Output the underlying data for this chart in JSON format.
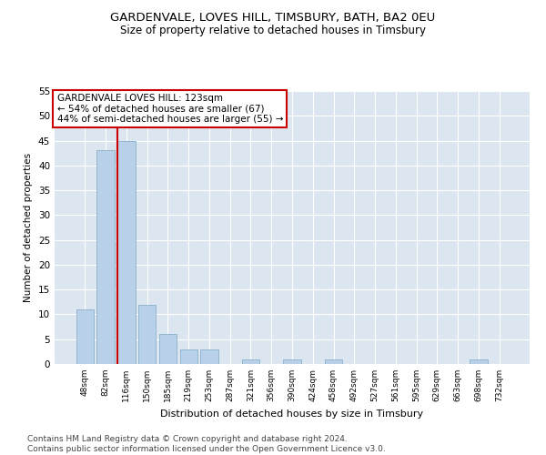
{
  "title": "GARDENVALE, LOVES HILL, TIMSBURY, BATH, BA2 0EU",
  "subtitle": "Size of property relative to detached houses in Timsbury",
  "xlabel": "Distribution of detached houses by size in Timsbury",
  "ylabel": "Number of detached properties",
  "categories": [
    "48sqm",
    "82sqm",
    "116sqm",
    "150sqm",
    "185sqm",
    "219sqm",
    "253sqm",
    "287sqm",
    "321sqm",
    "356sqm",
    "390sqm",
    "424sqm",
    "458sqm",
    "492sqm",
    "527sqm",
    "561sqm",
    "595sqm",
    "629sqm",
    "663sqm",
    "698sqm",
    "732sqm"
  ],
  "values": [
    11,
    43,
    45,
    12,
    6,
    3,
    3,
    0,
    1,
    0,
    1,
    0,
    1,
    0,
    0,
    0,
    0,
    0,
    0,
    1,
    0
  ],
  "bar_color": "#b8d0e8",
  "bar_edge_color": "#8ab0cc",
  "property_line_index": 2,
  "property_line_color": "#cc0000",
  "annotation_text": "GARDENVALE LOVES HILL: 123sqm\n← 54% of detached houses are smaller (67)\n44% of semi-detached houses are larger (55) →",
  "annotation_box_color": "#ffffff",
  "annotation_box_edge_color": "#cc0000",
  "ylim": [
    0,
    55
  ],
  "yticks": [
    0,
    5,
    10,
    15,
    20,
    25,
    30,
    35,
    40,
    45,
    50,
    55
  ],
  "background_color": "#dce6f0",
  "footer_text": "Contains HM Land Registry data © Crown copyright and database right 2024.\nContains public sector information licensed under the Open Government Licence v3.0.",
  "title_fontsize": 9.5,
  "subtitle_fontsize": 8.5,
  "annotation_fontsize": 7.5,
  "footer_fontsize": 6.5,
  "xlabel_fontsize": 8,
  "ylabel_fontsize": 7.5
}
